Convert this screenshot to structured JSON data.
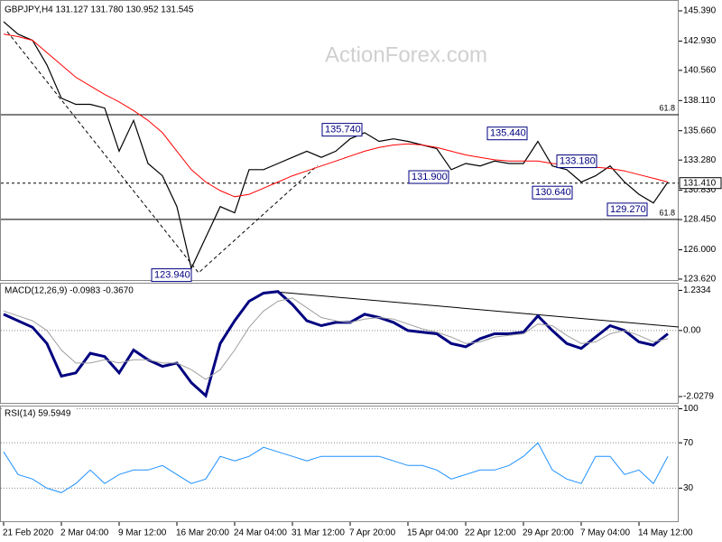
{
  "chart_data": [
    {
      "type": "line",
      "title": "GBPJPY,H4  131.127 131.780 130.952 131.545",
      "watermark": "ActionForex.com",
      "categories": [
        "21 Feb 2020",
        null,
        null,
        null,
        "2 Mar 04:00",
        null,
        null,
        null,
        "9 Mar 12:00",
        null,
        null,
        null,
        "16 Mar 20:00",
        null,
        null,
        null,
        "24 Mar 04:00",
        null,
        null,
        null,
        "31 Mar 12:00",
        null,
        null,
        null,
        "7 Apr 20:00",
        null,
        null,
        null,
        "15 Apr 04:00",
        null,
        null,
        null,
        "22 Apr 12:00",
        null,
        null,
        null,
        "29 Apr 20:00",
        null,
        null,
        null,
        "7 May 04:00",
        null,
        null,
        null,
        "14 May 12:00",
        null,
        null
      ],
      "series": [
        {
          "color": "#000000",
          "width": 1.2,
          "values": [
            144.5,
            143.5,
            143.0,
            141.0,
            138.3,
            137.8,
            137.8,
            137.5,
            134.0,
            136.5,
            133.0,
            132.0,
            129.5,
            124.5,
            127.0,
            129.5,
            129.0,
            132.5,
            132.5,
            133.0,
            133.5,
            134.0,
            133.5,
            134.0,
            135.0,
            135.5,
            134.8,
            135.0,
            134.8,
            134.5,
            134.2,
            132.5,
            133.0,
            132.8,
            133.2,
            133.0,
            133.0,
            134.8,
            132.8,
            132.5,
            131.5,
            132.0,
            132.8,
            131.5,
            130.5,
            129.8,
            131.5
          ]
        },
        {
          "color": "#ff0000",
          "width": 1,
          "values": [
            143.5,
            143.3,
            143.0,
            142.0,
            141.0,
            140.0,
            139.3,
            138.6,
            138.0,
            137.3,
            136.5,
            135.5,
            134.0,
            132.5,
            131.5,
            130.8,
            130.3,
            130.5,
            131.0,
            131.5,
            132.0,
            132.4,
            132.8,
            133.2,
            133.6,
            134.0,
            134.3,
            134.5,
            134.6,
            134.5,
            134.3,
            134.0,
            133.7,
            133.5,
            133.3,
            133.2,
            133.2,
            133.2,
            133.0,
            132.9,
            132.8,
            132.7,
            132.6,
            132.4,
            132.1,
            131.8,
            131.5
          ]
        }
      ],
      "ylim": [
        123.47,
        146.05
      ],
      "yticks": [
        {
          "value": 145.39,
          "label": "145.390"
        },
        {
          "value": 142.93,
          "label": "142.930"
        },
        {
          "value": 140.56,
          "label": "140.560"
        },
        {
          "value": 138.11,
          "label": "138.110"
        },
        {
          "value": 135.66,
          "label": "135.660"
        },
        {
          "value": 133.28,
          "label": "133.280"
        },
        {
          "value": 130.83,
          "label": "130.830"
        },
        {
          "value": 128.45,
          "label": "128.450"
        },
        {
          "value": 126.0,
          "label": "126.000"
        },
        {
          "value": 123.62,
          "label": "123.620"
        }
      ],
      "levels": [
        {
          "value": 136.96,
          "label": "61.8",
          "style": "solid"
        },
        {
          "value": 128.46,
          "label": "61.8",
          "style": "solid"
        },
        {
          "value": 131.41,
          "label": "131.410",
          "style": "dashed"
        }
      ],
      "annotations": [
        {
          "value": 135.74,
          "label": "135.740"
        },
        {
          "value": 135.44,
          "label": "135.440"
        },
        {
          "value": 131.9,
          "label": "131.900"
        },
        {
          "value": 133.18,
          "label": "133.180"
        },
        {
          "value": 130.64,
          "label": "130.640"
        },
        {
          "value": 129.27,
          "label": "129.270"
        },
        {
          "value": 123.94,
          "label": "123.940"
        }
      ]
    },
    {
      "type": "line",
      "title": "MACD(12,26,9) -0.0983 -0.3670",
      "series": [
        {
          "color": "#000080",
          "width": 3,
          "values": [
            0.5,
            0.3,
            0.1,
            -0.4,
            -1.4,
            -1.3,
            -0.7,
            -0.8,
            -1.3,
            -0.6,
            -0.9,
            -1.1,
            -1.0,
            -1.6,
            -2.0,
            -0.4,
            0.3,
            0.9,
            1.15,
            1.2,
            0.8,
            0.3,
            0.15,
            0.25,
            0.25,
            0.5,
            0.4,
            0.25,
            0.0,
            -0.05,
            -0.1,
            -0.4,
            -0.5,
            -0.25,
            -0.1,
            -0.1,
            -0.05,
            0.45,
            0.0,
            -0.4,
            -0.55,
            -0.2,
            0.15,
            0.0,
            -0.35,
            -0.45,
            -0.1
          ]
        },
        {
          "color": "#a0a0a0",
          "width": 1,
          "values": [
            0.6,
            0.45,
            0.3,
            0.0,
            -0.6,
            -1.0,
            -1.0,
            -0.9,
            -1.0,
            -0.9,
            -0.9,
            -1.0,
            -1.0,
            -1.2,
            -1.5,
            -1.2,
            -0.6,
            0.1,
            0.6,
            0.9,
            1.0,
            0.7,
            0.4,
            0.3,
            0.25,
            0.35,
            0.4,
            0.35,
            0.2,
            0.05,
            -0.05,
            -0.2,
            -0.4,
            -0.35,
            -0.2,
            -0.15,
            -0.1,
            0.2,
            0.15,
            -0.15,
            -0.4,
            -0.35,
            -0.1,
            0.0,
            -0.15,
            -0.35,
            -0.25
          ]
        }
      ],
      "ylim": [
        -2.25,
        1.44
      ],
      "yticks": [
        1.2334,
        {
          "value": 0,
          "label": "0.00"
        },
        -2.0279
      ],
      "zero_line": "dotted"
    },
    {
      "type": "line",
      "title": "RSI(14) 59.5949",
      "series": [
        {
          "color": "#1e90ff",
          "width": 1,
          "values": [
            62,
            42,
            38,
            30,
            26,
            34,
            46,
            34,
            42,
            46,
            46,
            50,
            42,
            34,
            38,
            58,
            54,
            58,
            66,
            62,
            58,
            54,
            58,
            58,
            58,
            58,
            58,
            54,
            50,
            50,
            46,
            38,
            42,
            46,
            46,
            50,
            58,
            70,
            46,
            38,
            34,
            58,
            58,
            42,
            46,
            34,
            58
          ]
        }
      ],
      "ylim": [
        0,
        102
      ],
      "yticks": [
        100,
        70,
        30
      ],
      "grid": "dotted"
    }
  ]
}
